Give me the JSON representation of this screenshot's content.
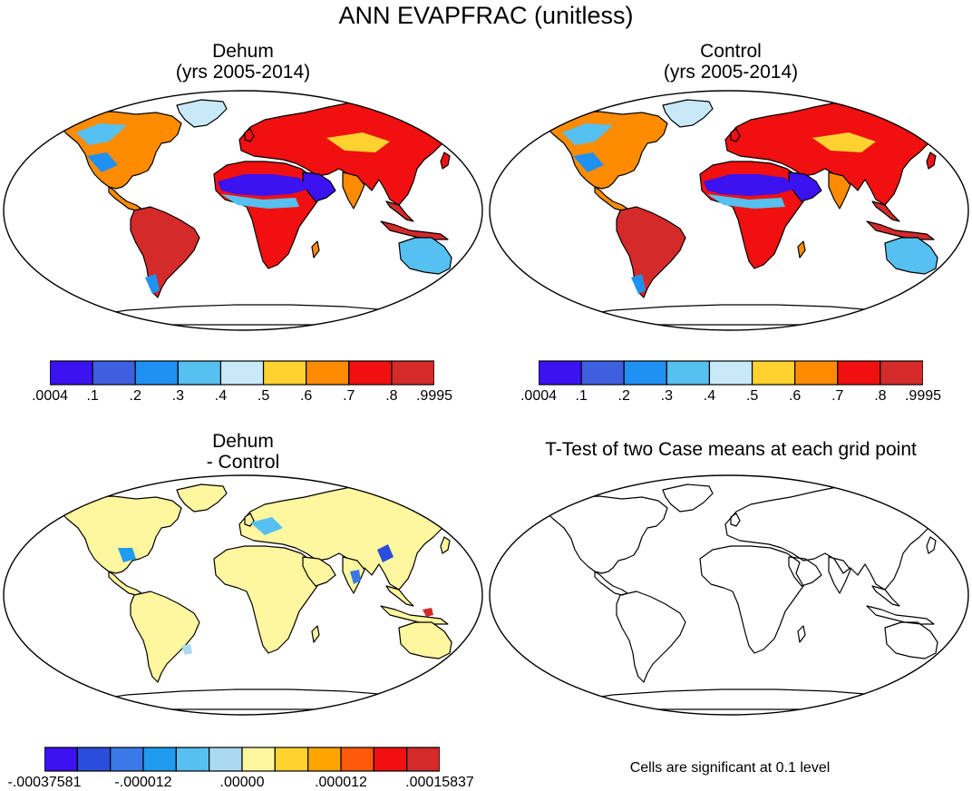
{
  "title": "ANN EVAPFRAC (unitless)",
  "panels": [
    {
      "id": "dehum",
      "title_line1": "Dehum",
      "title_line2": "(yrs 2005-2014)",
      "field": "evapfrac"
    },
    {
      "id": "control",
      "title_line1": "Control",
      "title_line2": "(yrs 2005-2014)",
      "field": "evapfrac"
    },
    {
      "id": "diff",
      "title_line1": "Dehum",
      "title_line2": "- Control",
      "field": "difference"
    },
    {
      "id": "ttest",
      "title_line1": "T-Test of two Case means at each grid point",
      "title_line2": "",
      "field": "none"
    }
  ],
  "colorbars": {
    "main": {
      "colors": [
        "#3b12f0",
        "#3d5fe0",
        "#1f91f2",
        "#56c0f0",
        "#c8e9f7",
        "#ffd230",
        "#ff8c00",
        "#f01010",
        "#d42a2a"
      ],
      "labels": [
        ".0004",
        ".1",
        ".2",
        ".3",
        ".4",
        ".5",
        ".6",
        ".7",
        ".8",
        ".9995"
      ]
    },
    "diff": {
      "colors": [
        "#3b12f0",
        "#2b4ddc",
        "#3a78e8",
        "#1f9bf0",
        "#56c0f0",
        "#aad9f0",
        "#fff6a0",
        "#ffd230",
        "#ffa500",
        "#ff5a0a",
        "#f01010",
        "#d42a2a"
      ],
      "labels": [
        "-.00037581",
        "-.000012",
        ".00000",
        ".000012",
        ".00015837"
      ]
    }
  },
  "significance_note": "Cells are significant at 0.1 level"
}
